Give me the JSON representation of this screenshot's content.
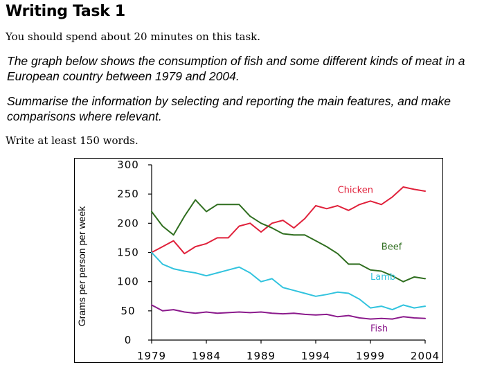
{
  "page": {
    "title": "Writing Task 1",
    "instruction": "You should spend about 20 minutes on this task.",
    "prompt1_line1": "The graph below shows the consumption of fish and some different kinds of meat in a",
    "prompt1_line2": "European country between 1979 and 2004.",
    "prompt2_line1": "Summarise the information by selecting and reporting the main features, and make",
    "prompt2_line2": "comparisons where relevant.",
    "word_count": "Write at least 150 words."
  },
  "chart_data": {
    "type": "line",
    "title": "",
    "ylabel": "Grams per person per week",
    "xlabel": "",
    "ylim": [
      0,
      300
    ],
    "xlim": [
      1979,
      2004
    ],
    "yticks": [
      "300",
      "250",
      "200",
      "150",
      "100",
      "50",
      "0"
    ],
    "xticks": [
      "1979",
      "1984",
      "1989",
      "1994",
      "1999",
      "2004"
    ],
    "grid": false,
    "legend": "inline labels",
    "series": [
      {
        "name": "Chicken",
        "color": "#e0203a",
        "x": [
          1979,
          1980,
          1981,
          1982,
          1983,
          1984,
          1985,
          1986,
          1987,
          1988,
          1989,
          1990,
          1991,
          1992,
          1993,
          1994,
          1995,
          1996,
          1997,
          1998,
          1999,
          2000,
          2001,
          2002,
          2003,
          2004
        ],
        "values": [
          150,
          160,
          170,
          148,
          160,
          165,
          175,
          175,
          195,
          200,
          185,
          200,
          205,
          192,
          208,
          230,
          225,
          230,
          222,
          232,
          238,
          232,
          245,
          262,
          258,
          255
        ]
      },
      {
        "name": "Beef",
        "color": "#2f6e1f",
        "x": [
          1979,
          1980,
          1981,
          1982,
          1983,
          1984,
          1985,
          1986,
          1987,
          1988,
          1989,
          1990,
          1991,
          1992,
          1993,
          1994,
          1995,
          1996,
          1997,
          1998,
          1999,
          2000,
          2001,
          2002,
          2003,
          2004
        ],
        "values": [
          220,
          195,
          180,
          212,
          240,
          220,
          232,
          232,
          232,
          212,
          200,
          192,
          182,
          180,
          180,
          170,
          160,
          148,
          130,
          130,
          120,
          118,
          110,
          100,
          108,
          105
        ]
      },
      {
        "name": "Lamb",
        "color": "#31c3de",
        "x": [
          1979,
          1980,
          1981,
          1982,
          1983,
          1984,
          1985,
          1986,
          1987,
          1988,
          1989,
          1990,
          1991,
          1992,
          1993,
          1994,
          1995,
          1996,
          1997,
          1998,
          1999,
          2000,
          2001,
          2002,
          2003,
          2004
        ],
        "values": [
          150,
          130,
          122,
          118,
          115,
          110,
          115,
          120,
          125,
          115,
          100,
          105,
          90,
          85,
          80,
          75,
          78,
          82,
          80,
          70,
          55,
          58,
          52,
          60,
          55,
          58
        ]
      },
      {
        "name": "Fish",
        "color": "#8b1a8c",
        "x": [
          1979,
          1980,
          1981,
          1982,
          1983,
          1984,
          1985,
          1986,
          1987,
          1988,
          1989,
          1990,
          1991,
          1992,
          1993,
          1994,
          1995,
          1996,
          1997,
          1998,
          1999,
          2000,
          2001,
          2002,
          2003,
          2004
        ],
        "values": [
          60,
          50,
          52,
          48,
          46,
          48,
          46,
          47,
          48,
          47,
          48,
          46,
          45,
          46,
          44,
          43,
          44,
          40,
          42,
          38,
          36,
          37,
          36,
          40,
          38,
          37
        ]
      }
    ],
    "labels": [
      {
        "series": "Chicken",
        "text": "Chicken",
        "x": 1996,
        "y": 252
      },
      {
        "series": "Beef",
        "text": "Beef",
        "x": 2000,
        "y": 155
      },
      {
        "series": "Lamb",
        "text": "Lamb",
        "x": 1999,
        "y": 103
      },
      {
        "series": "Fish",
        "text": "Fish",
        "x": 1999,
        "y": 15
      }
    ]
  }
}
